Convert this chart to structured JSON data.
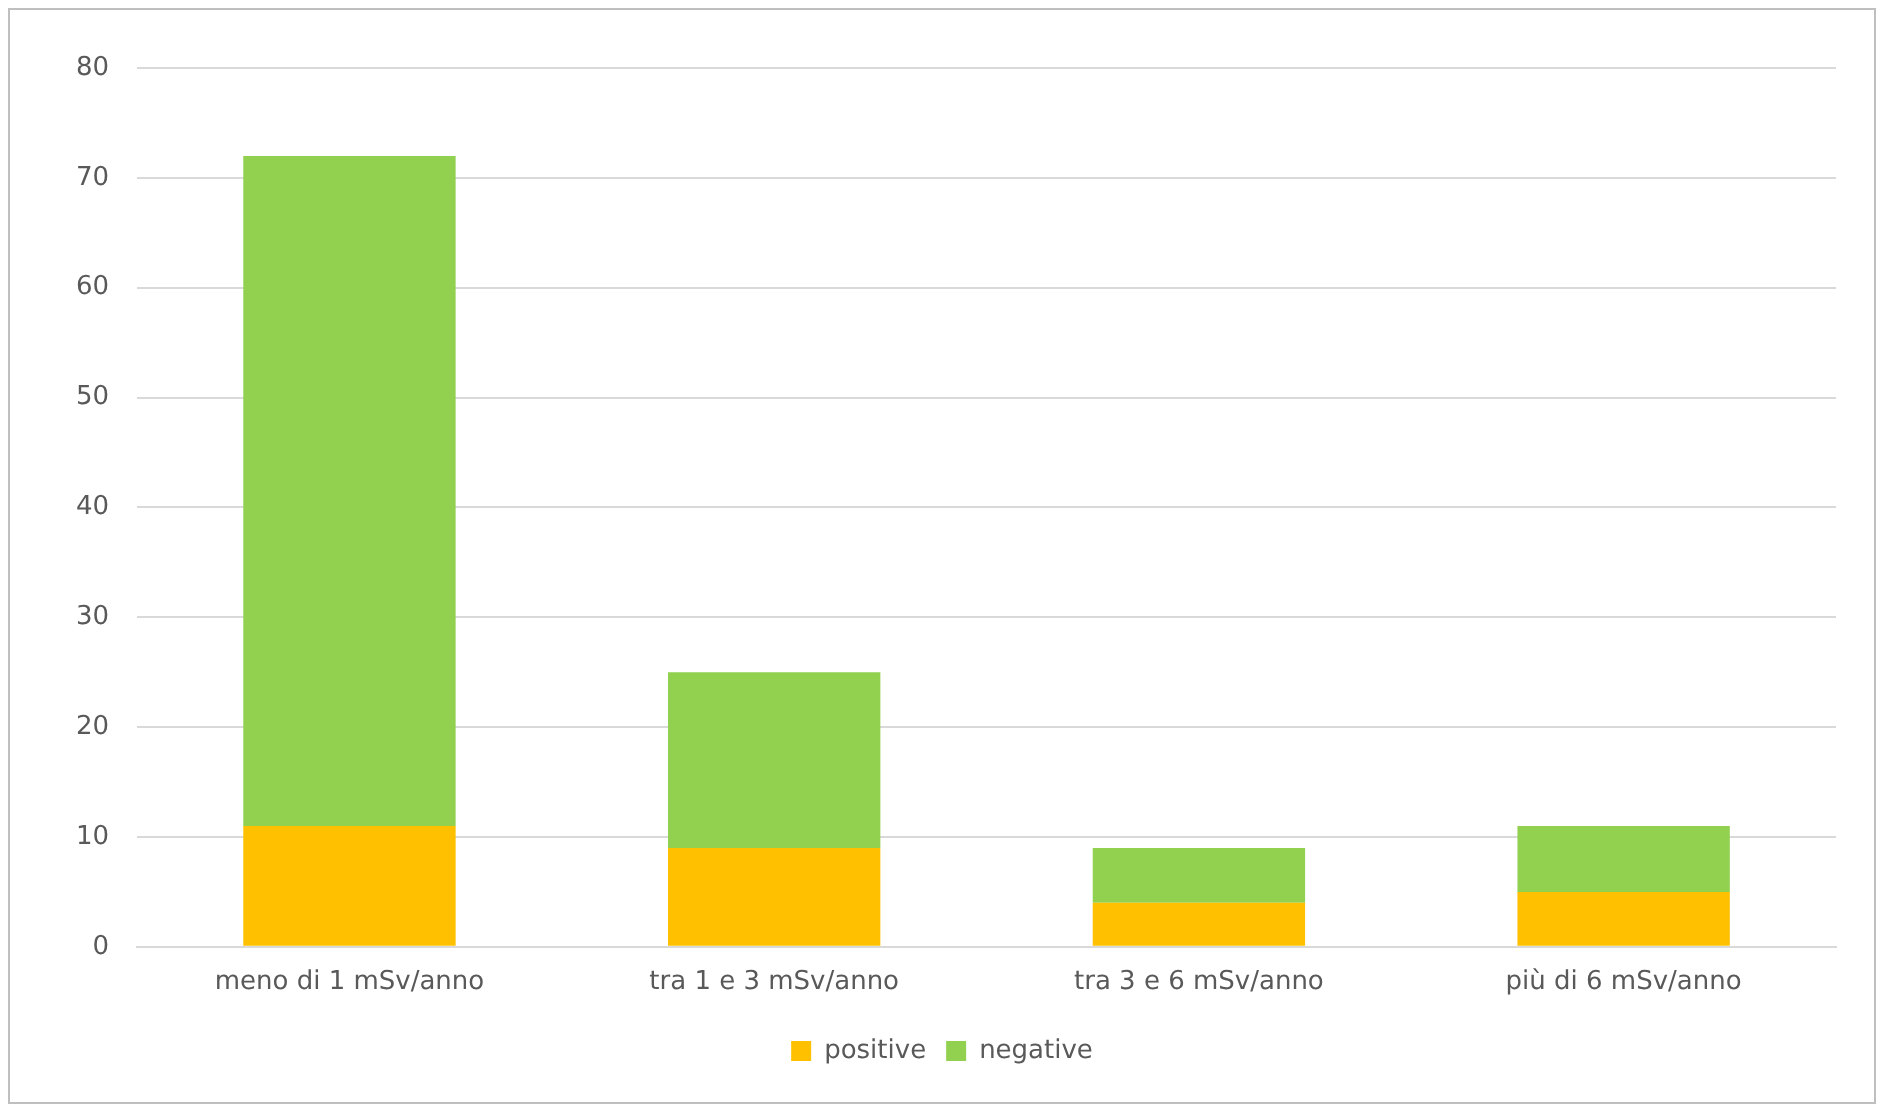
{
  "chart_data": {
    "type": "bar",
    "stacked": true,
    "categories": [
      "meno di 1 mSv/anno",
      "tra 1 e 3 mSv/anno",
      "tra 3 e 6 mSv/anno",
      "più di 6 mSv/anno"
    ],
    "series": [
      {
        "name": "positive",
        "color": "#ffc000",
        "values": [
          11,
          9,
          4,
          5
        ]
      },
      {
        "name": "negative",
        "color": "#92d050",
        "values": [
          61,
          16,
          5,
          6
        ]
      }
    ],
    "ylim": [
      0,
      80
    ],
    "yticks": [
      0,
      10,
      20,
      30,
      40,
      50,
      60,
      70,
      80
    ],
    "grid": "y",
    "legend": "bottom"
  }
}
